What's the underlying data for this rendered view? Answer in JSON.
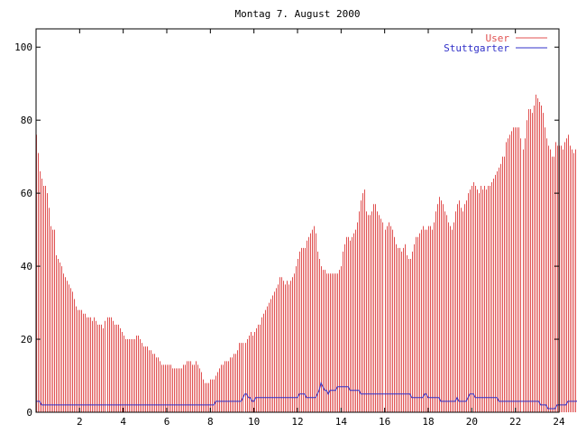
{
  "chart_data": {
    "type": "bar",
    "title": "Montag 7. August 2000",
    "xlabel": "",
    "ylabel": "",
    "xlim": [
      0,
      24
    ],
    "ylim": [
      0,
      105
    ],
    "x_ticks": [
      "2",
      "4",
      "6",
      "8",
      "10",
      "12",
      "14",
      "16",
      "18",
      "20",
      "22",
      "24"
    ],
    "y_ticks": [
      "0",
      "20",
      "40",
      "60",
      "80",
      "100"
    ],
    "legend_position": "top-right",
    "grid": false,
    "x_step_hours": 0.0833,
    "series": [
      {
        "name": "User",
        "type": "bar",
        "color": "#e05050",
        "values": [
          76,
          71,
          66,
          64,
          62,
          62,
          60,
          56,
          51,
          50,
          50,
          43,
          42,
          41,
          40,
          38,
          37,
          36,
          35,
          34,
          33,
          31,
          29,
          28,
          28,
          28,
          27,
          27,
          26,
          26,
          26,
          25,
          26,
          25,
          24,
          24,
          24,
          23,
          25,
          26,
          26,
          26,
          25,
          24,
          24,
          24,
          23,
          22,
          21,
          20,
          20,
          20,
          20,
          20,
          20,
          21,
          21,
          20,
          19,
          18,
          18,
          18,
          17,
          17,
          16,
          16,
          15,
          15,
          14,
          13,
          13,
          13,
          13,
          13,
          13,
          12,
          12,
          12,
          12,
          12,
          12,
          13,
          13,
          14,
          14,
          14,
          13,
          13,
          14,
          13,
          12,
          11,
          9,
          8,
          8,
          8,
          9,
          9,
          9,
          10,
          11,
          12,
          13,
          13,
          14,
          14,
          14,
          15,
          15,
          16,
          16,
          17,
          19,
          19,
          19,
          19,
          20,
          21,
          22,
          21,
          22,
          23,
          24,
          24,
          26,
          27,
          28,
          29,
          30,
          31,
          32,
          33,
          34,
          35,
          37,
          37,
          36,
          35,
          36,
          35,
          36,
          37,
          38,
          40,
          42,
          44,
          45,
          45,
          45,
          47,
          48,
          49,
          50,
          51,
          49,
          44,
          42,
          40,
          39,
          39,
          38,
          38,
          38,
          38,
          38,
          38,
          38,
          39,
          40,
          44,
          46,
          48,
          48,
          47,
          48,
          49,
          50,
          52,
          55,
          58,
          60,
          61,
          55,
          54,
          54,
          55,
          57,
          57,
          55,
          54,
          53,
          52,
          50,
          51,
          52,
          51,
          50,
          48,
          46,
          45,
          45,
          44,
          45,
          46,
          43,
          42,
          42,
          44,
          46,
          48,
          48,
          49,
          50,
          51,
          50,
          50,
          51,
          51,
          50,
          52,
          55,
          57,
          59,
          58,
          57,
          55,
          54,
          52,
          51,
          50,
          52,
          55,
          57,
          58,
          56,
          55,
          57,
          58,
          60,
          61,
          62,
          63,
          62,
          61,
          60,
          62,
          61,
          62,
          61,
          62,
          62,
          63,
          64,
          65,
          66,
          67,
          68,
          70,
          70,
          74,
          75,
          76,
          77,
          78,
          78,
          78,
          78,
          75,
          72,
          75,
          80,
          83,
          83,
          82,
          84,
          87,
          86,
          85,
          84,
          82,
          78,
          75,
          73,
          72,
          70,
          70,
          74,
          73,
          73,
          73,
          72,
          74,
          75,
          76,
          73,
          72,
          71,
          72,
          70,
          68
        ],
        "legend_sample": "line"
      },
      {
        "name": "Stuttgarter",
        "type": "line",
        "color": "#3030c8",
        "values": [
          3,
          3,
          3,
          2,
          2,
          2,
          2,
          2,
          2,
          2,
          2,
          2,
          2,
          2,
          2,
          2,
          2,
          2,
          2,
          2,
          2,
          2,
          2,
          2,
          2,
          2,
          2,
          2,
          2,
          2,
          2,
          2,
          2,
          2,
          2,
          2,
          2,
          2,
          2,
          2,
          2,
          2,
          2,
          2,
          2,
          2,
          2,
          2,
          2,
          2,
          2,
          2,
          2,
          2,
          2,
          2,
          2,
          2,
          2,
          2,
          2,
          2,
          2,
          2,
          2,
          2,
          2,
          2,
          2,
          2,
          2,
          2,
          2,
          2,
          2,
          2,
          2,
          2,
          2,
          2,
          2,
          2,
          2,
          2,
          2,
          2,
          2,
          2,
          2,
          2,
          2,
          2,
          2,
          2,
          2,
          2,
          2,
          2,
          2,
          3,
          3,
          3,
          3,
          3,
          3,
          3,
          3,
          3,
          3,
          3,
          3,
          3,
          3,
          3,
          4,
          5,
          5,
          4,
          4,
          3,
          3,
          4,
          4,
          4,
          4,
          4,
          4,
          4,
          4,
          4,
          4,
          4,
          4,
          4,
          4,
          4,
          4,
          4,
          4,
          4,
          4,
          4,
          4,
          4,
          4,
          5,
          5,
          5,
          5,
          4,
          4,
          4,
          4,
          4,
          4,
          5,
          6,
          8,
          7,
          6,
          6,
          5,
          6,
          6,
          6,
          6,
          7,
          7,
          7,
          7,
          7,
          7,
          7,
          6,
          6,
          6,
          6,
          6,
          6,
          5,
          5,
          5,
          5,
          5,
          5,
          5,
          5,
          5,
          5,
          5,
          5,
          5,
          5,
          5,
          5,
          5,
          5,
          5,
          5,
          5,
          5,
          5,
          5,
          5,
          5,
          5,
          5,
          4,
          4,
          4,
          4,
          4,
          4,
          4,
          5,
          5,
          4,
          4,
          4,
          4,
          4,
          4,
          4,
          3,
          3,
          3,
          3,
          3,
          3,
          3,
          3,
          3,
          4,
          3,
          3,
          3,
          3,
          3,
          4,
          5,
          5,
          5,
          4,
          4,
          4,
          4,
          4,
          4,
          4,
          4,
          4,
          4,
          4,
          4,
          4,
          3,
          3,
          3,
          3,
          3,
          3,
          3,
          3,
          3,
          3,
          3,
          3,
          3,
          3,
          3,
          3,
          3,
          3,
          3,
          3,
          3,
          3,
          3,
          2,
          2,
          2,
          2,
          1,
          1,
          1,
          1,
          1,
          2,
          2,
          2,
          2,
          2,
          2,
          3,
          3,
          3,
          3,
          3,
          3,
          4,
          4
        ],
        "legend_sample": "line"
      }
    ]
  }
}
